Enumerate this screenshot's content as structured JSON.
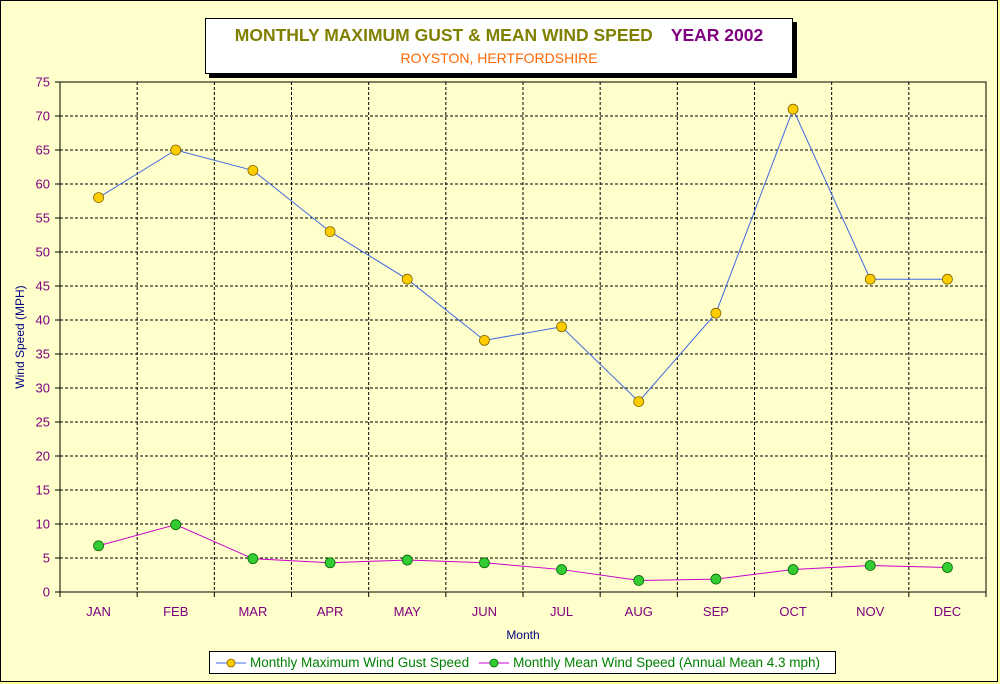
{
  "chart_data": {
    "type": "line",
    "title": "MONTHLY MAXIMUM GUST & MEAN WIND SPEED",
    "title_year": "YEAR 2002",
    "subtitle": "ROYSTON, HERTFORDSHIRE",
    "xlabel": "Month",
    "ylabel": "Wind Speed (MPH)",
    "categories": [
      "JAN",
      "FEB",
      "MAR",
      "APR",
      "MAY",
      "JUN",
      "JUL",
      "AUG",
      "SEP",
      "OCT",
      "NOV",
      "DEC"
    ],
    "ylim": [
      0,
      75
    ],
    "yticks": [
      0,
      5,
      10,
      15,
      20,
      25,
      30,
      35,
      40,
      45,
      50,
      55,
      60,
      65,
      70,
      75
    ],
    "grid": true,
    "legend_position": "bottom",
    "series": [
      {
        "name": "Monthly Maximum Wind Gust Speed",
        "values": [
          58,
          65,
          62,
          53,
          46,
          37,
          39,
          28,
          41,
          71,
          46,
          46
        ],
        "line_color": "#4169e1",
        "marker_color": "#ffcc00"
      },
      {
        "name": "Monthly Mean Wind Speed (Annual Mean 4.3 mph)",
        "values": [
          6.8,
          9.9,
          4.9,
          4.3,
          4.7,
          4.3,
          3.3,
          1.7,
          1.9,
          3.3,
          3.9,
          3.6
        ],
        "line_color": "#cc00cc",
        "marker_color": "#33cc33"
      }
    ]
  }
}
